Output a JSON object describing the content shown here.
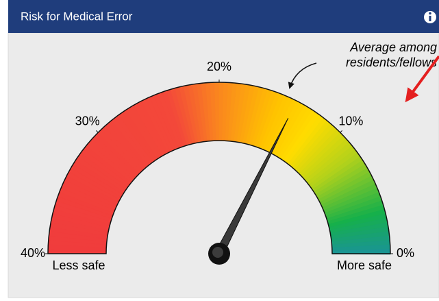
{
  "header": {
    "title": "Risk for Medical Error"
  },
  "chart_data": {
    "type": "gauge",
    "value": 14,
    "ylim": [
      40,
      0
    ],
    "yticks": [
      {
        "value": 40,
        "label": "40%"
      },
      {
        "value": 30,
        "label": "30%"
      },
      {
        "value": 20,
        "label": "20%"
      },
      {
        "value": 10,
        "label": "10%"
      },
      {
        "value": 0,
        "label": "0%"
      }
    ],
    "left_label": "Less safe",
    "right_label": "More safe",
    "annotation": [
      "Average among",
      "residents/fellows"
    ]
  }
}
